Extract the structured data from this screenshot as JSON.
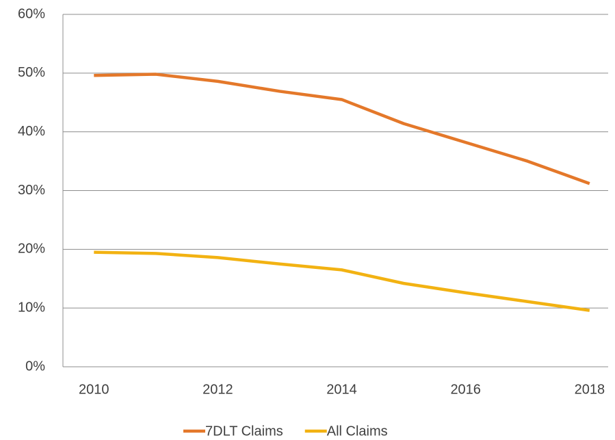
{
  "chart_data": {
    "type": "line",
    "x": [
      2010,
      2011,
      2012,
      2013,
      2014,
      2015,
      2016,
      2017,
      2018
    ],
    "series": [
      {
        "name": "7DLT Claims",
        "color": "#e4782a",
        "values": [
          49.6,
          49.8,
          48.6,
          46.9,
          45.5,
          41.4,
          38.2,
          35.0,
          31.2
        ]
      },
      {
        "name": "All Claims",
        "color": "#f2b212",
        "values": [
          19.5,
          19.3,
          18.6,
          17.5,
          16.5,
          14.2,
          12.6,
          11.1,
          9.6
        ]
      }
    ],
    "xlim": [
      2009.5,
      2018.3
    ],
    "xticks": [
      2010,
      2012,
      2014,
      2016,
      2018
    ],
    "ylim": [
      0,
      60
    ],
    "yticks": [
      {
        "value": 0,
        "label": "0%"
      },
      {
        "value": 10,
        "label": "10%"
      },
      {
        "value": 20,
        "label": "20%"
      },
      {
        "value": 30,
        "label": "30%"
      },
      {
        "value": 40,
        "label": "40%"
      },
      {
        "value": 50,
        "label": "50%"
      },
      {
        "value": 60,
        "label": "60%"
      }
    ],
    "grid": true,
    "legend": "bottom"
  }
}
